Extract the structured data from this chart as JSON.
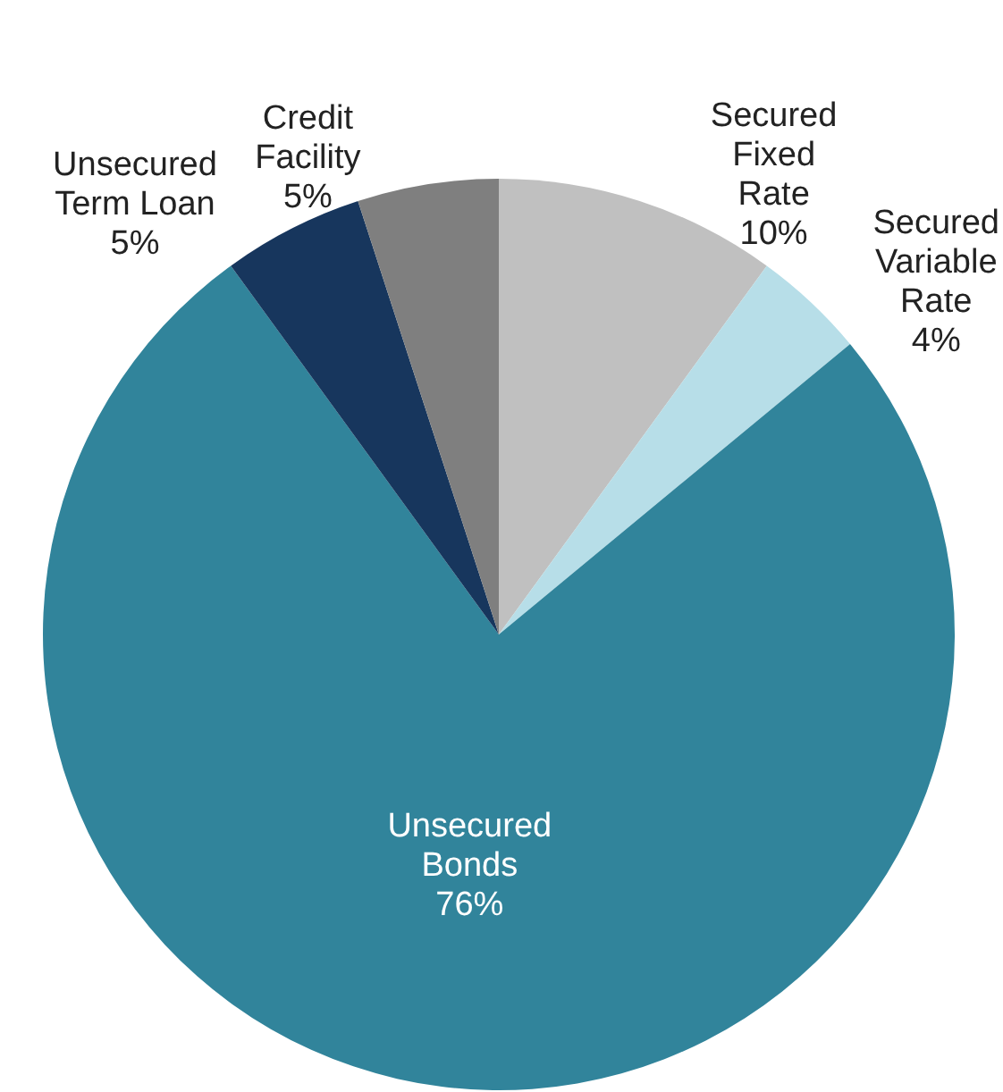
{
  "chart_data": {
    "type": "pie",
    "categories": [
      "Secured\nFixed\nRate",
      "Secured\nVariable\nRate",
      "Unsecured\nBonds",
      "Unsecured\nTerm Loan",
      "Credit\nFacility"
    ],
    "values": [
      10,
      4,
      76,
      5,
      5
    ],
    "value_labels": [
      "10%",
      "4%",
      "76%",
      "5%",
      "5%"
    ],
    "colors": [
      "#c0c0c0",
      "#b7dee8",
      "#31849b",
      "#17365d",
      "#7f7f7f"
    ],
    "legend": false
  }
}
